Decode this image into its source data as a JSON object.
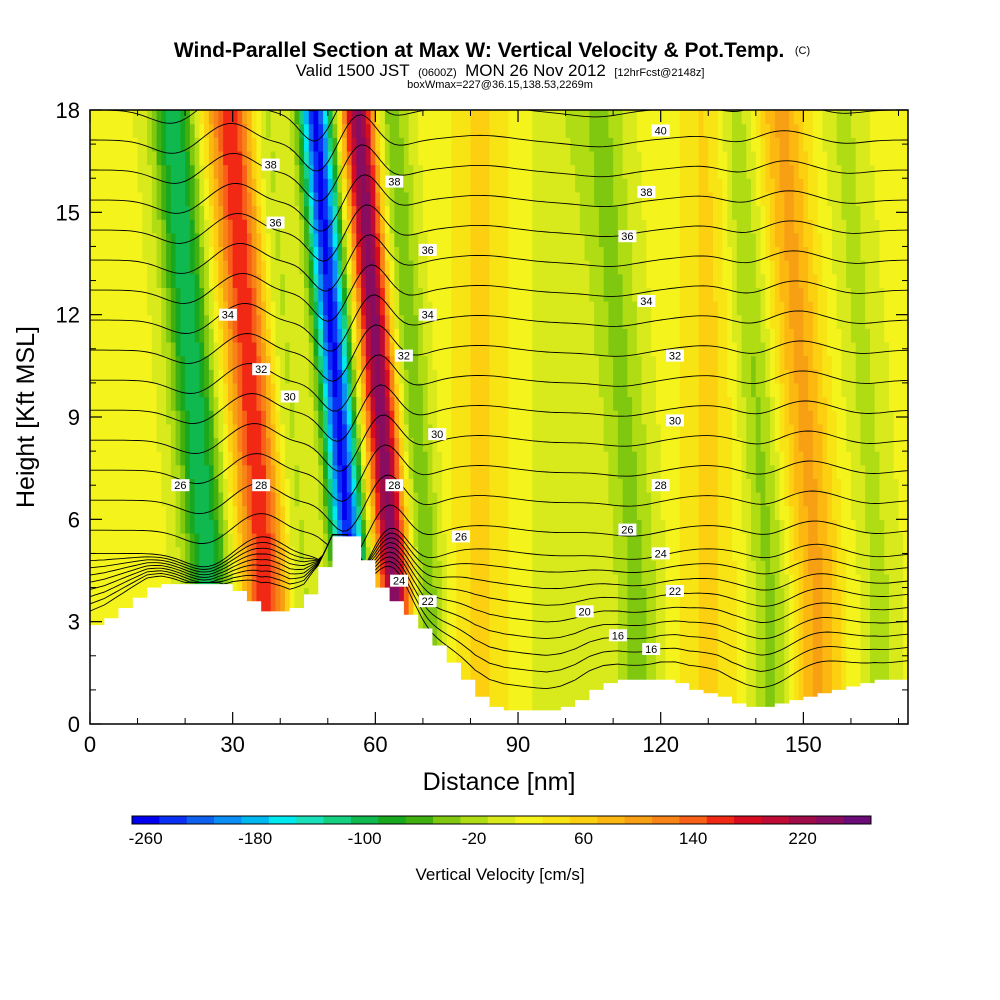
{
  "chart_data": {
    "type": "heatmap",
    "title": "Wind-Parallel Section at Max W: Vertical Velocity & Pot.Temp.",
    "title_mark": "(C)",
    "subtitle": {
      "valid_prefix": "Valid 1500 JST",
      "utc": "(0600Z)",
      "date": "MON 26 Nov 2012",
      "forecast": "[12hrFcst@2148z]"
    },
    "box_info": "boxWmax=227@36.15,138.53,2269m",
    "xlabel": "Distance [nm]",
    "ylabel": "Height [Kft MSL]",
    "xlim": [
      0,
      172
    ],
    "ylim": [
      0,
      18
    ],
    "x_ticks": [
      0,
      30,
      60,
      90,
      120,
      150
    ],
    "y_ticks": [
      0,
      3,
      6,
      9,
      12,
      15,
      18
    ],
    "x_tick_labels": [
      "0",
      "30",
      "60",
      "90",
      "120",
      "150"
    ],
    "y_tick_labels": [
      "0",
      "3",
      "6",
      "9",
      "12",
      "15",
      "18"
    ],
    "colorbar": {
      "title": "Vertical Velocity [cm/s]",
      "min": -270,
      "max": 270,
      "step": 20,
      "tick_values": [
        -260,
        -180,
        -100,
        -20,
        60,
        140,
        220
      ],
      "tick_labels": [
        "-260",
        "-180",
        "-100",
        "-20",
        "60",
        "140",
        "220"
      ],
      "colors": [
        "#0000f0",
        "#0a30f5",
        "#1060f0",
        "#0a8ef5",
        "#00b8f0",
        "#00e8f0",
        "#18e0b8",
        "#14d080",
        "#10b850",
        "#18a820",
        "#40b010",
        "#80c810",
        "#b0dc14",
        "#d8ea1c",
        "#f4f41c",
        "#f8e414",
        "#fcd010",
        "#fcb810",
        "#f8a014",
        "#f88418",
        "#f86018",
        "#f02814",
        "#d80c20",
        "#c00c34",
        "#a00c48",
        "#880c60",
        "#6c0c78"
      ]
    },
    "vertical_velocity_features": [
      {
        "x": 25,
        "w": -120,
        "width_nm": 4.6
      },
      {
        "x": 37,
        "w": 150,
        "width_nm": 5.0
      },
      {
        "x": 44,
        "w": -40,
        "width_nm": 3.5
      },
      {
        "x": 55,
        "w": -270,
        "width_nm": 3.4
      },
      {
        "x": 64,
        "w": 230,
        "width_nm": 3.4
      },
      {
        "x": 71,
        "w": -60,
        "width_nm": 3.5
      },
      {
        "x": 82,
        "w": 40,
        "width_nm": 6
      },
      {
        "x": 99,
        "w": -20,
        "width_nm": 6
      },
      {
        "x": 115,
        "w": -50,
        "width_nm": 5
      },
      {
        "x": 130,
        "w": 40,
        "width_nm": 6
      },
      {
        "x": 143,
        "w": -50,
        "width_nm": 4
      },
      {
        "x": 153,
        "w": 80,
        "width_nm": 5
      },
      {
        "x": 166,
        "w": -30,
        "width_nm": 4
      }
    ],
    "terrain": {
      "x": [
        0,
        3,
        6,
        9,
        12,
        15,
        18,
        21,
        24,
        27,
        30,
        33,
        36,
        39,
        42,
        45,
        48,
        51,
        54,
        57,
        60,
        63,
        66,
        69,
        72,
        75,
        78,
        81,
        84,
        87,
        90,
        93,
        96,
        99,
        102,
        105,
        108,
        111,
        114,
        117,
        120,
        123,
        126,
        129,
        132,
        135,
        138,
        141,
        144,
        147,
        150,
        153,
        156,
        159,
        162,
        165,
        168,
        172
      ],
      "y": [
        2.9,
        3.1,
        3.4,
        3.7,
        4.0,
        4.1,
        4.1,
        4.1,
        4.1,
        4.1,
        3.9,
        3.6,
        3.3,
        3.3,
        3.4,
        3.8,
        4.6,
        5.5,
        5.5,
        4.8,
        4.0,
        3.6,
        3.2,
        2.8,
        2.3,
        1.8,
        1.3,
        0.8,
        0.5,
        0.4,
        0.4,
        0.4,
        0.4,
        0.5,
        0.7,
        1.0,
        1.2,
        1.3,
        1.3,
        1.3,
        1.3,
        1.2,
        1.0,
        0.9,
        0.8,
        0.6,
        0.5,
        0.5,
        0.6,
        0.7,
        0.8,
        0.9,
        1.0,
        1.1,
        1.2,
        1.3,
        1.3,
        1.3
      ]
    },
    "theta_contours": {
      "levels": [
        16,
        17,
        18,
        19,
        20,
        21,
        22,
        23,
        24,
        25,
        26,
        27,
        28,
        29,
        30,
        31,
        32,
        33,
        34,
        35,
        36,
        37,
        38,
        39,
        40,
        41
      ],
      "labels": [
        {
          "text": "16",
          "x": 118,
          "y": 2.2
        },
        {
          "text": "16",
          "x": 111,
          "y": 2.6
        },
        {
          "text": "20",
          "x": 104,
          "y": 3.3
        },
        {
          "text": "22",
          "x": 71,
          "y": 3.6
        },
        {
          "text": "22",
          "x": 123,
          "y": 3.9
        },
        {
          "text": "24",
          "x": 65,
          "y": 4.2
        },
        {
          "text": "24",
          "x": 120,
          "y": 5.0
        },
        {
          "text": "26",
          "x": 78,
          "y": 5.5
        },
        {
          "text": "26",
          "x": 113,
          "y": 5.7
        },
        {
          "text": "26",
          "x": 19,
          "y": 7.0
        },
        {
          "text": "28",
          "x": 36,
          "y": 7.0
        },
        {
          "text": "28",
          "x": 64,
          "y": 7.0
        },
        {
          "text": "28",
          "x": 120,
          "y": 7.0
        },
        {
          "text": "30",
          "x": 42,
          "y": 9.6
        },
        {
          "text": "30",
          "x": 73,
          "y": 8.5
        },
        {
          "text": "30",
          "x": 123,
          "y": 8.9
        },
        {
          "text": "32",
          "x": 36,
          "y": 10.4
        },
        {
          "text": "32",
          "x": 66,
          "y": 10.8
        },
        {
          "text": "32",
          "x": 123,
          "y": 10.8
        },
        {
          "text": "34",
          "x": 29,
          "y": 12.0
        },
        {
          "text": "34",
          "x": 71,
          "y": 12.0
        },
        {
          "text": "34",
          "x": 117,
          "y": 12.4
        },
        {
          "text": "36",
          "x": 39,
          "y": 14.7
        },
        {
          "text": "36",
          "x": 71,
          "y": 13.9
        },
        {
          "text": "36",
          "x": 113,
          "y": 14.3
        },
        {
          "text": "38",
          "x": 38,
          "y": 16.4
        },
        {
          "text": "38",
          "x": 64,
          "y": 15.9
        },
        {
          "text": "38",
          "x": 117,
          "y": 15.6
        },
        {
          "text": "40",
          "x": 120,
          "y": 17.4
        }
      ]
    }
  }
}
